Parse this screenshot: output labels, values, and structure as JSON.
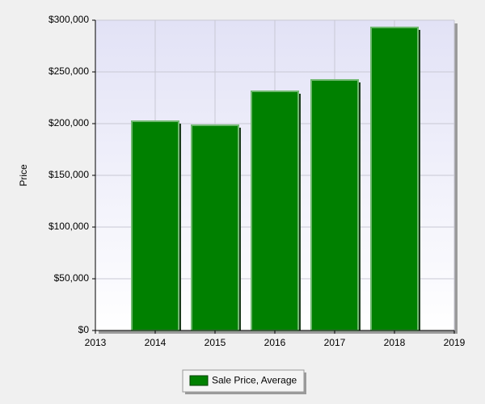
{
  "chart_data": {
    "type": "bar",
    "y_label": "Price",
    "x": [
      2014,
      2015,
      2016,
      2017,
      2018
    ],
    "series": [
      {
        "name": "Sale Price, Average",
        "color": "#008000",
        "values": [
          202300,
          198400,
          231250,
          242200,
          293000
        ]
      }
    ],
    "xlim": [
      2013,
      2019
    ],
    "xticks": [
      2013,
      2014,
      2015,
      2016,
      2017,
      2018,
      2019
    ],
    "ylim": [
      0,
      300000
    ],
    "yticks": [
      {
        "value": 0,
        "label": "$0"
      },
      {
        "value": 50000,
        "label": "$50,000"
      },
      {
        "value": 100000,
        "label": "$100,000"
      },
      {
        "value": 150000,
        "label": "$150,000"
      },
      {
        "value": 200000,
        "label": "$200,000"
      },
      {
        "value": 250000,
        "label": "$250,000"
      },
      {
        "value": 300000,
        "label": "$300,000"
      }
    ],
    "grid": true
  }
}
